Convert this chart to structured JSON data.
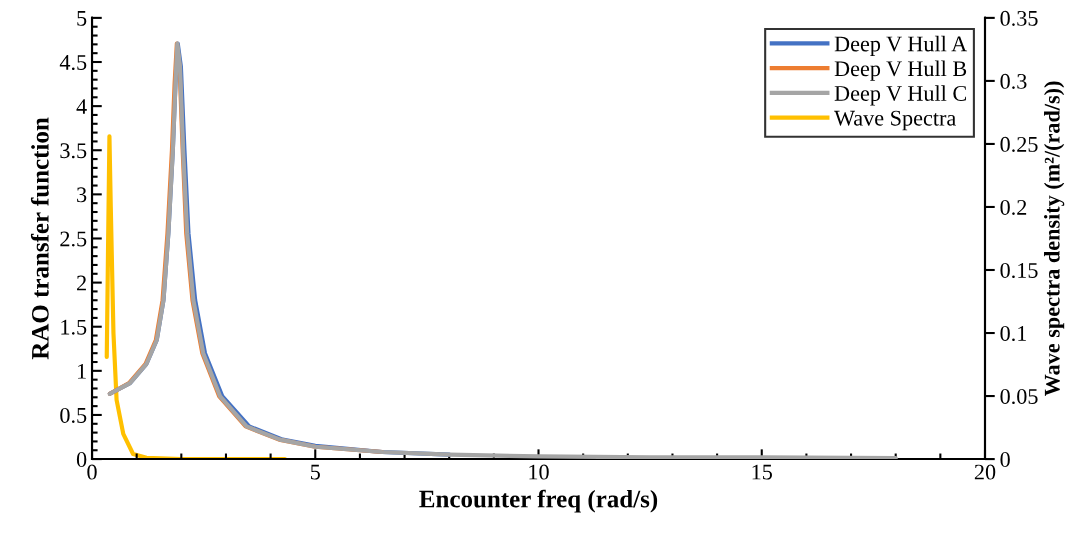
{
  "chart_data": {
    "type": "line",
    "xlabel": "Encounter freq (rad/s)",
    "ylabel": "RAO transfer function",
    "y2label": "Wave spectra density (m²/(rad/s))",
    "xlim": [
      0,
      20
    ],
    "xticks": [
      0,
      5,
      10,
      15,
      20
    ],
    "ylim": [
      0,
      5
    ],
    "yticks": [
      0,
      0.5,
      1,
      1.5,
      2,
      2.5,
      3,
      3.5,
      4,
      4.5,
      5
    ],
    "y2lim": [
      0,
      0.35
    ],
    "y2ticks": [
      0,
      0.05,
      0.1,
      0.15,
      0.2,
      0.25,
      0.3,
      0.35
    ],
    "grid": false,
    "legend": "top right",
    "marker": "none",
    "line_style": "solid",
    "series": [
      {
        "name": "Deep V Hull A",
        "color": "#4472c4",
        "x": [
          0.4,
          0.85,
          1.22,
          1.45,
          1.6,
          1.71,
          1.81,
          1.87,
          1.92,
          1.99,
          2.07,
          2.16,
          2.31,
          2.53,
          2.92,
          3.52,
          4.27,
          5,
          6.5,
          8
        ],
        "values": [
          0.74,
          0.86,
          1.08,
          1.35,
          1.8,
          2.56,
          3.5,
          4.26,
          4.71,
          4.45,
          3.5,
          2.56,
          1.8,
          1.2,
          0.71,
          0.37,
          0.22,
          0.15,
          0.08,
          0.05
        ]
      },
      {
        "name": "Deep V Hull B",
        "color": "#ed7d31",
        "x": [
          0.4,
          0.83,
          1.2,
          1.43,
          1.58,
          1.69,
          1.79,
          1.85,
          1.9,
          1.96,
          2.03,
          2.11,
          2.25,
          2.47,
          2.85,
          3.44,
          4.19,
          5,
          6.5
        ],
        "values": [
          0.74,
          0.86,
          1.08,
          1.35,
          1.8,
          2.56,
          3.5,
          4.26,
          4.71,
          4.45,
          3.5,
          2.56,
          1.8,
          1.2,
          0.71,
          0.37,
          0.22,
          0.14,
          0.08
        ]
      },
      {
        "name": "Deep V Hull C",
        "color": "#a5a5a5",
        "x": [
          0.4,
          0.85,
          1.22,
          1.45,
          1.6,
          1.71,
          1.81,
          1.87,
          1.91,
          1.97,
          2.04,
          2.13,
          2.27,
          2.49,
          2.87,
          3.46,
          4.21,
          5,
          6.5,
          8,
          10,
          12.5,
          15,
          18
        ],
        "values": [
          0.74,
          0.86,
          1.08,
          1.35,
          1.8,
          2.56,
          3.5,
          4.26,
          4.71,
          4.45,
          3.5,
          2.56,
          1.8,
          1.2,
          0.71,
          0.37,
          0.22,
          0.14,
          0.08,
          0.05,
          0.03,
          0.02,
          0.02,
          0.01
        ]
      },
      {
        "name": "Wave Spectra",
        "color": "#ffc000",
        "axis": "y2",
        "x": [
          0.33,
          0.36,
          0.39,
          0.42,
          0.48,
          0.55,
          0.7,
          0.92,
          1.22,
          2,
          3,
          4.32
        ],
        "values": [
          0.081,
          0.17,
          0.256,
          0.2,
          0.1,
          0.047,
          0.02,
          0.004,
          0.001,
          0,
          0,
          0
        ]
      }
    ]
  }
}
